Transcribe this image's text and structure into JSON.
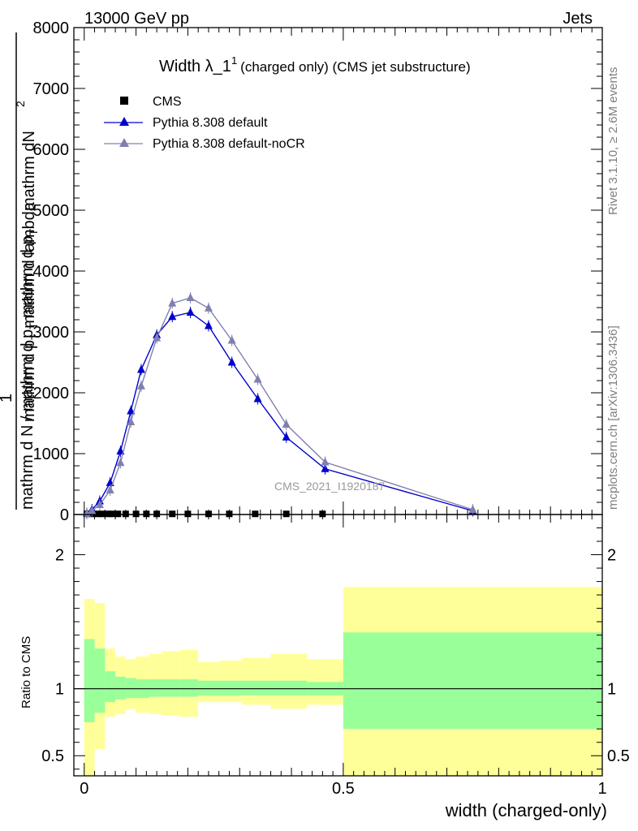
{
  "header": {
    "left": "13000 GeV pp",
    "right": "Jets"
  },
  "side_text": {
    "rivet": "Rivet 3.1.10, ≥ 2.6M events",
    "mcplots": "mcplots.cern.ch [arXiv:1306.3436]"
  },
  "watermark": "CMS_2021_I1920187",
  "chart_data": [
    {
      "type": "line",
      "title_main": "Width λ_1",
      "title_sup": "1",
      "title_sub": "(charged only) (CMS jet substructure)",
      "ylabel_numerator_1": "mathrm d",
      "ylabel_numerator_2": "N",
      "ylabel_numerator_sup": "2",
      "ylabel_numerator_3": "mathrm d p",
      "ylabel_numerator_sub": "T",
      "ylabel_numerator_4": " mathrm d lambda",
      "ylabel_denominator": "mathrm d N / mathrm d p",
      "ylabel_denominator_sub": "T",
      "ylabel_denominator_tail": " mathrm d p",
      "ylabel_denominator_sub2": "T",
      "ylabel_one": "1",
      "xlim": [
        -0.02,
        1.0
      ],
      "ylim": [
        0,
        8000
      ],
      "yticks": [
        0,
        1000,
        2000,
        3000,
        4000,
        5000,
        6000,
        7000,
        8000
      ],
      "ytick_labels": [
        "0",
        "1000",
        "2000",
        "3000",
        "4000",
        "5000",
        "6000",
        "7000",
        "8000"
      ],
      "legend_position": "top-left",
      "series": [
        {
          "name": "CMS",
          "marker": "square",
          "color": "#000000",
          "x": [
            0.005,
            0.015,
            0.025,
            0.035,
            0.045,
            0.055,
            0.065,
            0.08,
            0.1,
            0.12,
            0.14,
            0.17,
            0.2,
            0.24,
            0.28,
            0.33,
            0.39,
            0.46
          ],
          "y": [
            10,
            10,
            10,
            10,
            10,
            10,
            10,
            10,
            10,
            10,
            10,
            10,
            10,
            10,
            10,
            10,
            10,
            10
          ]
        },
        {
          "name": "Pythia 8.308 default",
          "marker": "triangle",
          "color": "#0000cc",
          "x": [
            0.005,
            0.015,
            0.03,
            0.05,
            0.07,
            0.09,
            0.11,
            0.14,
            0.17,
            0.205,
            0.24,
            0.285,
            0.335,
            0.39,
            0.465,
            0.75
          ],
          "y": [
            20,
            80,
            220,
            520,
            1040,
            1700,
            2380,
            2950,
            3250,
            3320,
            3100,
            2500,
            1900,
            1270,
            750,
            60
          ]
        },
        {
          "name": "Pythia 8.308 default-noCR",
          "marker": "triangle",
          "color": "#8080b0",
          "x": [
            0.005,
            0.015,
            0.03,
            0.05,
            0.07,
            0.09,
            0.11,
            0.14,
            0.17,
            0.205,
            0.24,
            0.285,
            0.335,
            0.39,
            0.465,
            0.75
          ],
          "y": [
            15,
            60,
            160,
            400,
            850,
            1520,
            2110,
            2900,
            3470,
            3560,
            3390,
            2860,
            2220,
            1480,
            860,
            80
          ]
        }
      ]
    },
    {
      "type": "bar",
      "ylabel": "Ratio to CMS",
      "xlabel": "width (charged-only)",
      "xlim": [
        -0.02,
        1.0
      ],
      "ylim": [
        0.35,
        2.3
      ],
      "xticks": [
        0,
        0.5,
        1
      ],
      "xtick_labels": [
        "0",
        "0.5",
        "1"
      ],
      "yticks": [
        0.5,
        1,
        2
      ],
      "ytick_labels": [
        "0.5",
        "1",
        "2"
      ],
      "bands": {
        "bins": [
          [
            0.0,
            0.02
          ],
          [
            0.02,
            0.04
          ],
          [
            0.04,
            0.06
          ],
          [
            0.06,
            0.08
          ],
          [
            0.08,
            0.1
          ],
          [
            0.1,
            0.125
          ],
          [
            0.125,
            0.15
          ],
          [
            0.15,
            0.185
          ],
          [
            0.185,
            0.22
          ],
          [
            0.22,
            0.26
          ],
          [
            0.26,
            0.305
          ],
          [
            0.305,
            0.36
          ],
          [
            0.36,
            0.43
          ],
          [
            0.43,
            0.5
          ],
          [
            0.5,
            1.0
          ]
        ],
        "stat_low": [
          0.75,
          0.82,
          0.9,
          0.92,
          0.93,
          0.93,
          0.94,
          0.94,
          0.94,
          0.95,
          0.95,
          0.95,
          0.95,
          0.95,
          0.7
        ],
        "stat_high": [
          1.37,
          1.3,
          1.13,
          1.09,
          1.08,
          1.07,
          1.07,
          1.07,
          1.07,
          1.06,
          1.06,
          1.06,
          1.06,
          1.05,
          1.42
        ],
        "total_low": [
          0.35,
          0.55,
          0.79,
          0.81,
          0.85,
          0.82,
          0.81,
          0.8,
          0.79,
          0.9,
          0.9,
          0.88,
          0.85,
          0.88,
          0.35
        ],
        "total_high": [
          1.67,
          1.64,
          1.3,
          1.24,
          1.22,
          1.24,
          1.26,
          1.28,
          1.29,
          1.2,
          1.21,
          1.23,
          1.26,
          1.22,
          1.76
        ],
        "stat_color": "#99ff99",
        "total_color": "#ffff99"
      }
    }
  ]
}
